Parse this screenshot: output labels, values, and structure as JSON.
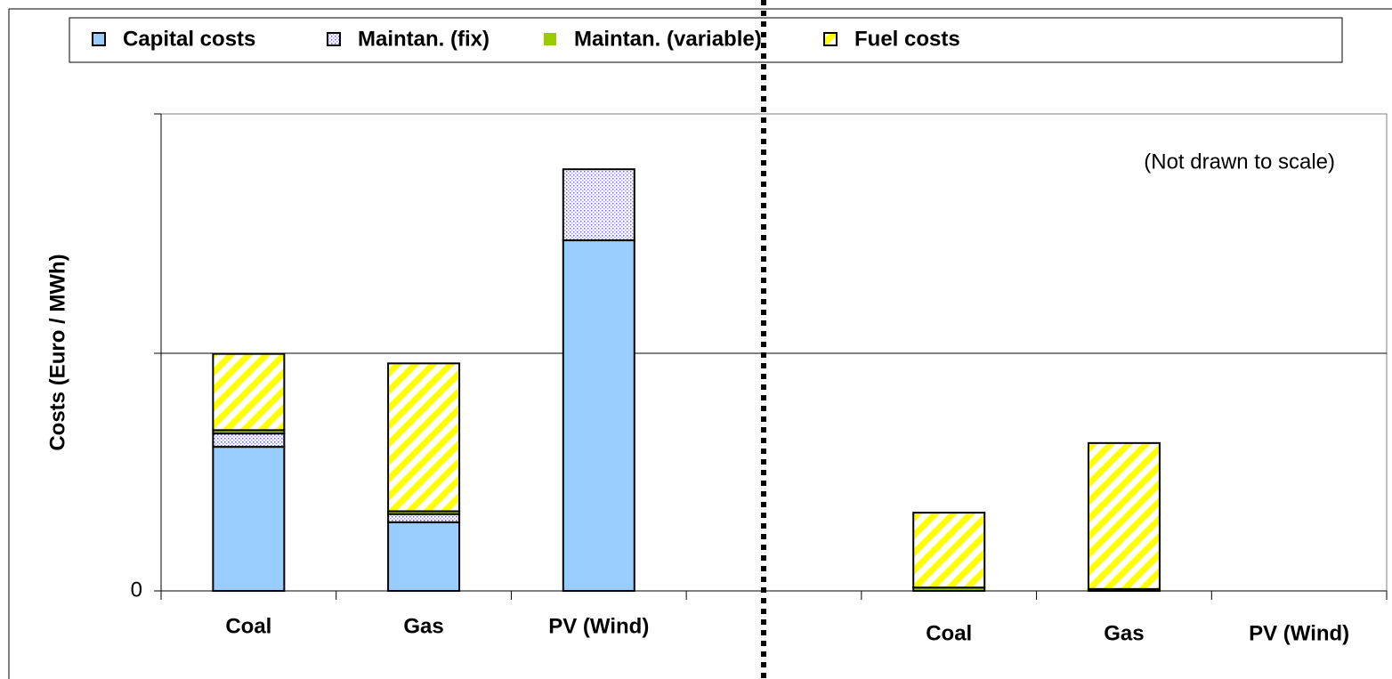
{
  "chart_data": {
    "type": "stacked_bar",
    "y_label": "Costs (Euro / MWh)",
    "annotation": "(Not drawn to scale)",
    "categories": [
      "Coal",
      "Gas",
      "PV (Wind)",
      null,
      "Coal",
      "Gas",
      "PV (Wind)"
    ],
    "series": [
      {
        "name": "Capital costs",
        "color": "#99ccff",
        "values": [
          30.2,
          14.4,
          73.5,
          null,
          0,
          0,
          0
        ]
      },
      {
        "name": "Maintan. (fix)",
        "color": "#9999ff",
        "values": [
          2.8,
          1.7,
          14.9,
          null,
          0,
          0,
          0
        ]
      },
      {
        "name": "Maintan. (variable)",
        "color": "#99cc00",
        "values": [
          0.7,
          0.6,
          0,
          null,
          0.7,
          0.4,
          0
        ]
      },
      {
        "name": "Fuel costs",
        "color": "#ffff00",
        "values": [
          16.0,
          31.0,
          0,
          null,
          15.7,
          30.6,
          0
        ]
      }
    ],
    "ylim": [
      0,
      100
    ],
    "yticks": [
      0
    ]
  }
}
